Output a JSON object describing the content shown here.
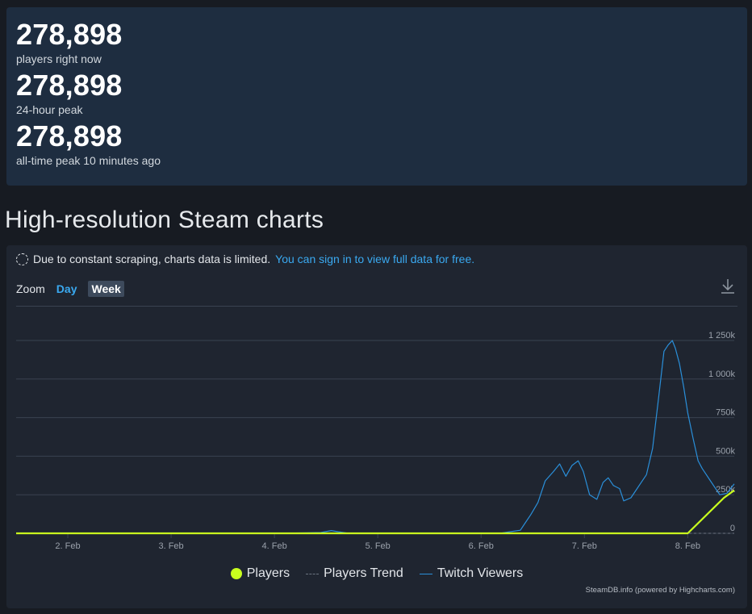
{
  "stats": [
    {
      "value": "278,898",
      "label": "players right now"
    },
    {
      "value": "278,898",
      "label": "24-hour peak"
    },
    {
      "value": "278,898",
      "label": "all-time peak 10 minutes ago"
    }
  ],
  "section_title": "High-resolution Steam charts",
  "notice": {
    "text": "Due to constant scraping, charts data is limited.",
    "link": "You can sign in to view full data for free."
  },
  "zoom": {
    "label": "Zoom",
    "options": [
      "Day",
      "Week"
    ],
    "active": "Week"
  },
  "credits": "SteamDB.info (powered by Highcharts.com)",
  "colors": {
    "players": "#c9ff1e",
    "trend": "#6b7480",
    "twitch": "#2a8fd9"
  },
  "icons": {
    "download": "download-icon",
    "notice": "spinner-icon"
  },
  "chart_data": {
    "type": "line",
    "x_unit": "Feb day",
    "xlim": [
      1.5,
      8.45
    ],
    "ylim": [
      0,
      1250000
    ],
    "x_ticks": [
      2,
      3,
      4,
      5,
      6,
      7,
      8
    ],
    "x_tick_labels": [
      "2. Feb",
      "3. Feb",
      "4. Feb",
      "5. Feb",
      "6. Feb",
      "7. Feb",
      "8. Feb"
    ],
    "y_ticks": [
      0,
      250000,
      500000,
      750000,
      1000000,
      1250000
    ],
    "y_tick_labels": [
      "0",
      "250k",
      "500k",
      "750k",
      "1 000k",
      "1 250k"
    ],
    "grid": true,
    "legend_position": "bottom",
    "series": [
      {
        "name": "Twitch Viewers",
        "color": "#2a8fd9",
        "x": [
          1.5,
          2.5,
          3.5,
          4.2,
          4.45,
          4.55,
          4.62,
          4.7,
          5.5,
          6.2,
          6.38,
          6.42,
          6.48,
          6.55,
          6.62,
          6.7,
          6.76,
          6.82,
          6.88,
          6.94,
          6.99,
          7.05,
          7.12,
          7.18,
          7.23,
          7.28,
          7.34,
          7.38,
          7.45,
          7.5,
          7.55,
          7.6,
          7.66,
          7.72,
          7.77,
          7.81,
          7.85,
          7.88,
          7.92,
          7.96,
          8.0,
          8.05,
          8.1,
          8.14,
          8.18,
          8.22,
          8.27,
          8.31,
          8.38,
          8.45
        ],
        "y": [
          0,
          0,
          0,
          2000,
          5000,
          18000,
          10000,
          2000,
          0,
          2000,
          20000,
          60000,
          120000,
          200000,
          340000,
          400000,
          450000,
          370000,
          440000,
          470000,
          400000,
          250000,
          220000,
          330000,
          360000,
          310000,
          290000,
          210000,
          230000,
          280000,
          330000,
          380000,
          550000,
          890000,
          1180000,
          1220000,
          1250000,
          1200000,
          1100000,
          950000,
          780000,
          620000,
          470000,
          420000,
          380000,
          340000,
          290000,
          250000,
          260000,
          320000
        ]
      },
      {
        "name": "Players Trend",
        "color": "#6b7480",
        "x": [
          1.5,
          7.4,
          8.45
        ],
        "y": [
          0,
          0,
          0
        ]
      },
      {
        "name": "Players",
        "color": "#c9ff1e",
        "x": [
          1.5,
          8.0,
          8.35,
          8.45
        ],
        "y": [
          0,
          0,
          230000,
          278898
        ]
      }
    ]
  }
}
